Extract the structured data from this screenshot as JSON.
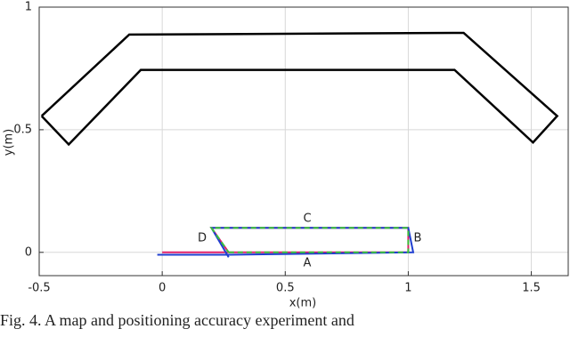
{
  "chart_data": {
    "type": "line",
    "xlabel": "x(m)",
    "ylabel": "y(m)",
    "xlim": [
      -0.5,
      1.65
    ],
    "ylim": [
      -0.095,
      1
    ],
    "xticks": [
      -0.5,
      0,
      0.5,
      1,
      1.5
    ],
    "yticks": [
      0,
      0.5,
      1
    ],
    "grid": true,
    "series": [
      {
        "color": "#000000",
        "dash": false,
        "x": [
          -0.49,
          -0.134,
          1.225,
          1.605,
          1.507,
          1.188,
          -0.087,
          -0.38,
          -0.49
        ],
        "y": [
          0.556,
          0.888,
          0.895,
          0.556,
          0.448,
          0.744,
          0.744,
          0.44,
          0.556
        ]
      },
      {
        "color": "#e0206a",
        "dash": false,
        "x": [
          0,
          1,
          1,
          0.2,
          0.27
        ],
        "y": [
          0,
          0,
          0.1,
          0.1,
          0
        ]
      },
      {
        "color": "#1f3fd0",
        "dash": false,
        "x": [
          -0.02,
          0.27,
          1.02,
          1,
          0.2,
          0.27
        ],
        "y": [
          -0.01,
          -0.01,
          0,
          0.1,
          0.1,
          -0.02
        ]
      },
      {
        "color": "#3ac23a",
        "dash": true,
        "x": [
          0.27,
          1,
          1,
          0.2,
          0.27
        ],
        "y": [
          0,
          0,
          0.1,
          0.1,
          0
        ]
      }
    ],
    "annotations": [
      "A",
      "B",
      "C",
      "D"
    ],
    "caption": "Fig. 4.  A  map  and  positioning  accuracy  experiment  and"
  }
}
